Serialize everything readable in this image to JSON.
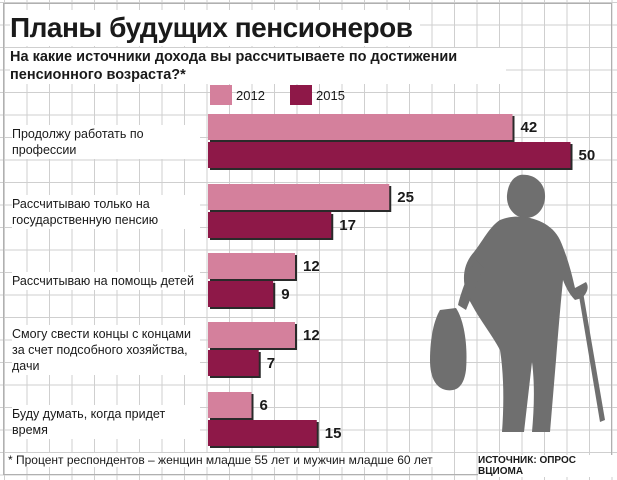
{
  "title": "Планы будущих пенсионеров",
  "subtitle": "На какие источники дохода вы рассчитываете по достижении пенсионного возраста?*",
  "legend": [
    {
      "label": "2012",
      "color": "#d4809c"
    },
    {
      "label": "2015",
      "color": "#8e1848"
    }
  ],
  "footnote": "* Процент респондентов – женщин младше 55 лет и мужчин младше 60 лет",
  "source": "ИСТОЧНИК: ОПРОС ВЦИОМА",
  "chart_data": {
    "type": "bar",
    "orientation": "horizontal",
    "categories": [
      "Продолжу работать по профессии",
      "Рассчитываю только на государственную пенсию",
      "Рассчитываю на помощь детей",
      "Смогу свести концы с концами за счет подсобного хозяйства, дачи",
      "Буду думать, когда придет время"
    ],
    "series": [
      {
        "name": "2012",
        "values": [
          42,
          25,
          12,
          12,
          6
        ],
        "color": "#d4809c"
      },
      {
        "name": "2015",
        "values": [
          50,
          17,
          9,
          7,
          15
        ],
        "color": "#8e1848"
      }
    ],
    "xlim": [
      0,
      50
    ]
  }
}
